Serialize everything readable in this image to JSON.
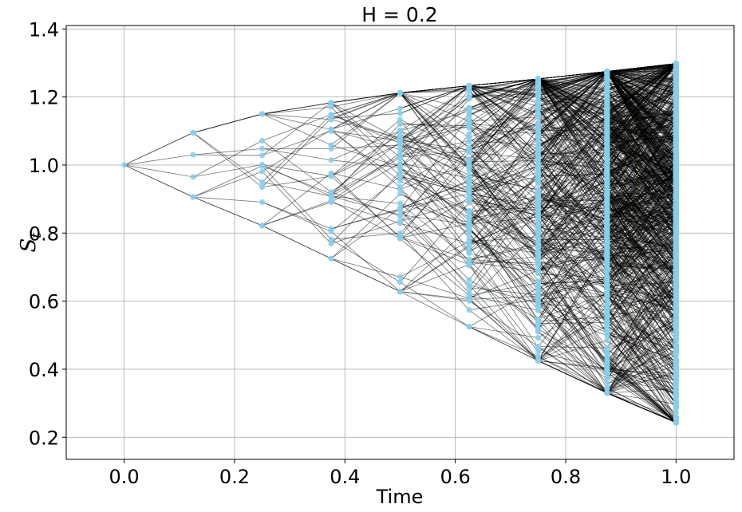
{
  "chart_data": {
    "type": "line",
    "title": "H = 0.2",
    "xlabel": "Time",
    "ylabel_main": "S",
    "ylabel_sub": "t",
    "xlim": [
      -0.105,
      1.105
    ],
    "ylim": [
      0.135,
      1.41
    ],
    "xticks": [
      0.0,
      0.2,
      0.4,
      0.6,
      0.8,
      1.0
    ],
    "xtick_labels": [
      "0.0",
      "0.2",
      "0.4",
      "0.6",
      "0.8",
      "1.0"
    ],
    "yticks": [
      0.2,
      0.4,
      0.6,
      0.8,
      1.0,
      1.2,
      1.4
    ],
    "ytick_labels": [
      "0.2",
      "0.4",
      "0.6",
      "0.8",
      "1.0",
      "1.2",
      "1.4"
    ],
    "grid": true,
    "time_steps": [
      0.0,
      0.125,
      0.25,
      0.375,
      0.5,
      0.625,
      0.75,
      0.875,
      1.0
    ],
    "upper_envelope": [
      1.0,
      1.095,
      1.15,
      1.183,
      1.212,
      1.233,
      1.253,
      1.275,
      1.298
    ],
    "lower_envelope": [
      1.0,
      0.906,
      0.822,
      0.725,
      0.628,
      0.525,
      0.425,
      0.33,
      0.243
    ],
    "line_color": "#000000",
    "node_color": "#87CEEB"
  }
}
